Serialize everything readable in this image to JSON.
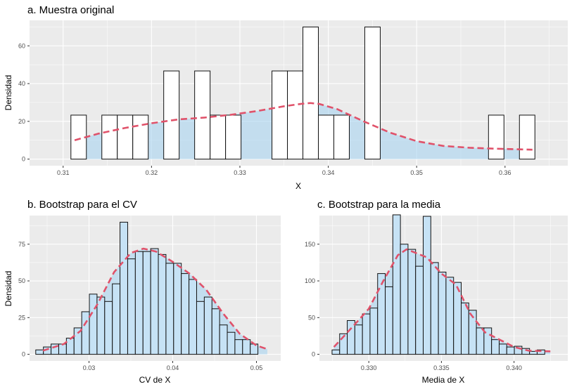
{
  "chart_data": [
    {
      "type": "histogram",
      "title": "a. Muestra original",
      "xlabel": "X",
      "ylabel": "Densidad",
      "xlim": [
        0.3062,
        0.3671
      ],
      "ylim": [
        -3.5,
        73.5
      ],
      "xticks": [
        0.31,
        0.32,
        0.33,
        0.34,
        0.35,
        0.36
      ],
      "xtick_labels": [
        "0.31",
        "0.32",
        "0.33",
        "0.34",
        "0.35",
        "0.36"
      ],
      "yticks": [
        0,
        20,
        40,
        60
      ],
      "ytick_labels": [
        "0",
        "20",
        "40",
        "60"
      ],
      "binwidth": 0.00175,
      "bin_start": 0.31088,
      "values": [
        23.3,
        0,
        23.3,
        23.3,
        23.3,
        0,
        46.7,
        0,
        46.7,
        23.3,
        23.3,
        0,
        0,
        46.7,
        46.7,
        70,
        23.3,
        23.3,
        0,
        70,
        0,
        0,
        0,
        0,
        0,
        0,
        0,
        23.3,
        0,
        23.3
      ],
      "density": {
        "x": [
          0.3113,
          0.314,
          0.317,
          0.32,
          0.323,
          0.326,
          0.329,
          0.332,
          0.335,
          0.337,
          0.338,
          0.339,
          0.341,
          0.344,
          0.347,
          0.35,
          0.353,
          0.356,
          0.359,
          0.3631
        ],
        "y": [
          10,
          13.5,
          16.5,
          19,
          21,
          22,
          23.5,
          25.5,
          28,
          29.3,
          29.7,
          29.2,
          26.5,
          20,
          14,
          9.5,
          7,
          6,
          5.5,
          5
        ]
      }
    },
    {
      "type": "histogram",
      "title": "b. Bootstrap para el CV",
      "xlabel": "CV de X",
      "ylabel": "Densidad",
      "xlim": [
        0.0229,
        0.0529
      ],
      "ylim": [
        -4.5,
        94.5
      ],
      "xticks": [
        0.03,
        0.04,
        0.05
      ],
      "xtick_labels": [
        "0.03",
        "0.04",
        "0.05"
      ],
      "yticks": [
        0,
        25,
        50,
        75
      ],
      "ytick_labels": [
        "0",
        "25",
        "50",
        "75"
      ],
      "binwidth": 0.000915,
      "bin_start": 0.02364,
      "values": [
        3,
        5,
        7,
        7,
        11,
        18,
        29,
        41,
        39,
        36,
        48,
        90,
        65,
        70,
        70,
        72,
        68,
        62,
        62,
        55,
        51,
        36,
        39,
        31,
        20,
        15,
        10,
        10,
        7
      ],
      "density": {
        "x": [
          0.0245,
          0.027,
          0.029,
          0.031,
          0.033,
          0.035,
          0.0365,
          0.038,
          0.04,
          0.042,
          0.044,
          0.046,
          0.048,
          0.05,
          0.0513
        ],
        "y": [
          2.5,
          7,
          16,
          34,
          56,
          69,
          72,
          70,
          63,
          55,
          44,
          28,
          14,
          6,
          3.5
        ]
      }
    },
    {
      "type": "histogram",
      "title": "c. Bootstrap para la media",
      "xlabel": "Media de X",
      "ylabel": "",
      "xlim": [
        0.3266,
        0.3437
      ],
      "ylim": [
        -9,
        189
      ],
      "xticks": [
        0.33,
        0.335,
        0.34
      ],
      "xtick_labels": [
        "0.330",
        "0.335",
        "0.340"
      ],
      "yticks": [
        0,
        50,
        100,
        150
      ],
      "ytick_labels": [
        "0",
        "50",
        "100",
        "150"
      ],
      "binwidth": 0.000523,
      "bin_start": 0.32747,
      "values": [
        6,
        28,
        46,
        40,
        55,
        63,
        110,
        92,
        190,
        150,
        143,
        120,
        188,
        125,
        112,
        105,
        98,
        70,
        60,
        36,
        36,
        20,
        14,
        10,
        11,
        8,
        4,
        6
      ],
      "density": {
        "x": [
          0.3276,
          0.329,
          0.33,
          0.331,
          0.332,
          0.3326,
          0.333,
          0.334,
          0.335,
          0.336,
          0.337,
          0.338,
          0.339,
          0.34,
          0.341,
          0.3425
        ],
        "y": [
          10,
          40,
          62,
          100,
          135,
          143,
          140,
          132,
          110,
          95,
          55,
          30,
          20,
          10,
          5,
          4
        ]
      }
    }
  ]
}
